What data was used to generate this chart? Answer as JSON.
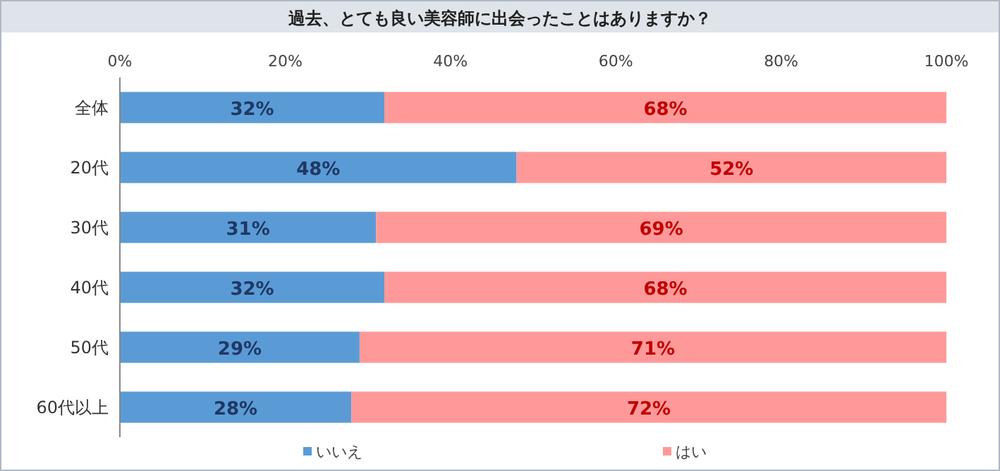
{
  "chart_data": {
    "type": "bar",
    "orientation": "horizontal",
    "stacked": true,
    "title": "過去、とても良い美容師に出会ったことはありますか？",
    "categories": [
      "全体",
      "20代",
      "30代",
      "40代",
      "50代",
      "60代以上"
    ],
    "series": [
      {
        "name": "いいえ",
        "color": "#5b9bd5",
        "values": [
          32,
          48,
          31,
          32,
          29,
          28
        ],
        "value_labels": [
          "32%",
          "48%",
          "31%",
          "32%",
          "29%",
          "28%"
        ]
      },
      {
        "name": "はい",
        "color": "#ff9999",
        "values": [
          68,
          52,
          69,
          68,
          71,
          72
        ],
        "value_labels": [
          "68%",
          "52%",
          "69%",
          "68%",
          "71%",
          "72%"
        ]
      }
    ],
    "xlim": [
      0,
      100
    ],
    "xticks": [
      {
        "value": 0,
        "label": "0%"
      },
      {
        "value": 20,
        "label": "20%"
      },
      {
        "value": 40,
        "label": "40%"
      },
      {
        "value": 60,
        "label": "60%"
      },
      {
        "value": 80,
        "label": "80%"
      },
      {
        "value": 100,
        "label": "100%"
      }
    ],
    "legend": "bottom",
    "grid": false
  }
}
